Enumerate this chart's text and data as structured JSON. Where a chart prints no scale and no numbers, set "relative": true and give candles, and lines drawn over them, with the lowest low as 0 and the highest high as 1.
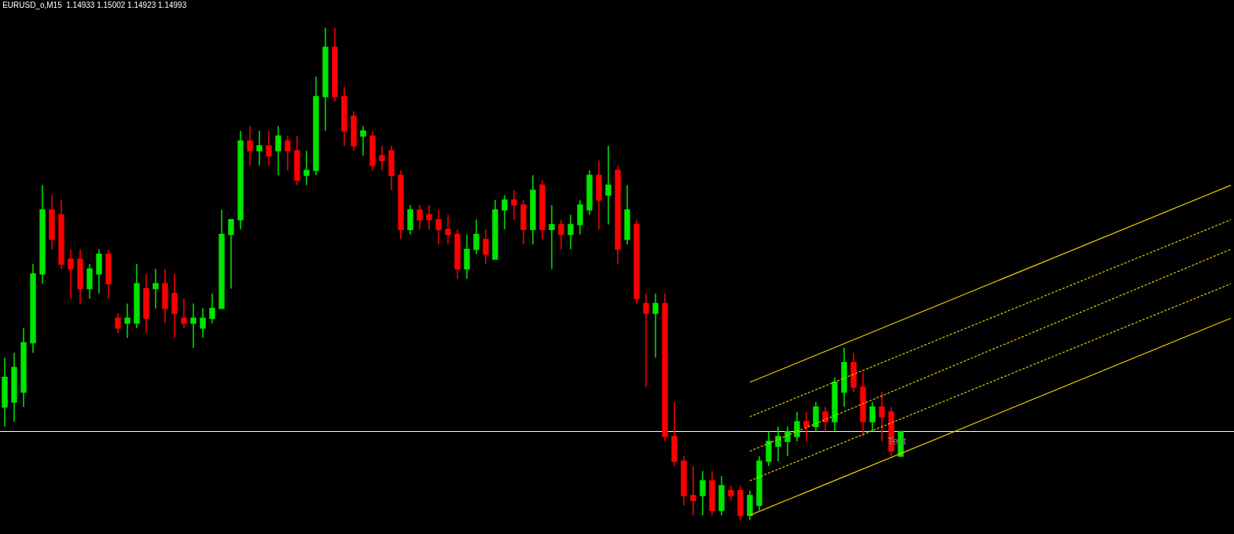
{
  "chart_data": {
    "type": "candlestick",
    "title": "EURUSD_o,M15  1.14933 1.15002 1.14923 1.14993",
    "relative": true,
    "tick_labels": false,
    "grid": false,
    "categories": [
      null,
      null,
      null,
      null,
      null,
      null,
      null,
      null,
      null,
      null,
      null,
      null,
      null,
      null,
      null,
      null,
      null,
      null,
      null,
      null,
      null,
      null,
      null,
      null,
      null,
      null,
      null,
      null,
      null,
      null,
      null,
      null,
      null,
      null,
      null,
      null,
      null,
      null,
      null,
      null,
      null,
      null,
      null,
      null,
      null,
      null,
      null,
      null,
      null,
      null,
      null,
      null,
      null,
      null,
      null,
      null,
      null,
      null,
      null,
      null,
      null,
      null,
      null,
      null,
      null,
      null,
      null,
      null,
      null,
      null,
      null,
      null,
      null,
      null,
      null,
      null,
      null,
      null,
      null,
      null,
      null,
      null,
      null,
      null,
      null,
      null,
      null,
      null,
      null,
      null,
      null,
      null,
      null,
      null,
      null,
      null,
      null,
      null,
      null,
      null,
      null,
      null,
      null,
      null,
      null,
      null,
      null,
      null,
      null,
      null,
      null,
      null,
      null,
      null,
      null,
      null,
      null,
      null,
      null,
      null,
      null,
      null,
      null,
      null,
      null,
      null,
      null,
      null,
      null,
      null,
      null
    ],
    "colors": [
      "#00e600",
      "#00e600",
      "#00e600",
      "#00e600",
      "#00e600",
      "#ff0000",
      "#ff0000",
      "#ff0000",
      "#ff0000",
      "#00e600",
      "#00e600",
      "#ff0000",
      "#ff0000",
      "#00e600",
      "#00e600",
      "#ff0000",
      "#00e600",
      "#ff0000",
      "#ff0000",
      "#ff0000",
      "#00e600",
      "#00e600",
      "#00e600",
      "#00e600",
      "#00e600",
      "#00e600",
      "#ff0000",
      "#00e600",
      "#ff0000",
      "#00e600",
      "#ff0000",
      "#ff0000",
      "#00e600",
      "#00e600",
      "#00e600",
      "#ff0000",
      "#ff0000",
      "#ff0000",
      "#00e600",
      "#ff0000",
      "#ff0000",
      "#ff0000",
      "#ff0000",
      "#00e600",
      "#ff0000",
      "#ff0000",
      "#ff0000",
      "#ff0000",
      "#ff0000",
      "#00e600",
      "#00e600",
      "#ff0000",
      "#00e600",
      "#00e600",
      "#ff0000",
      "#ff0000",
      "#00e600",
      "#ff0000",
      "#00e600",
      "#ff0000",
      "#00e600",
      "#00e600",
      "#00e600",
      "#ff0000",
      "#00e600",
      "#ff0000",
      "#00e600",
      "#ff0000",
      "#ff0000",
      "#00e600",
      "#ff0000",
      "#ff0000",
      "#ff0000",
      "#ff0000",
      "#00e600",
      "#ff0000",
      "#00e600",
      "#ff0000",
      "#ff0000",
      "#00e600",
      "#00e600",
      "#00e600",
      "#00e600",
      "#00e600",
      "#00e600",
      "#ff0000",
      "#00e600",
      "#ff0000",
      "#00e600",
      "#00e600",
      "#ff0000",
      "#ff0000",
      "#00e600",
      "#ff0000",
      "#ff0000",
      "#00e600",
      null,
      null,
      null,
      null,
      null,
      null,
      null,
      null,
      null,
      null,
      null,
      null,
      null,
      null,
      null,
      null,
      null,
      null,
      null,
      null,
      null,
      null,
      null,
      null,
      null,
      null,
      null,
      null,
      null,
      null,
      null,
      null,
      null,
      null,
      null
    ],
    "ohlc": [
      [
        0.23,
        0.33,
        0.19,
        0.29
      ],
      [
        0.24,
        0.34,
        0.2,
        0.31
      ],
      [
        0.26,
        0.39,
        0.23,
        0.36
      ],
      [
        0.36,
        0.52,
        0.34,
        0.5
      ],
      [
        0.5,
        0.68,
        0.48,
        0.63
      ],
      [
        0.63,
        0.66,
        0.55,
        0.57
      ],
      [
        0.62,
        0.65,
        0.51,
        0.52
      ],
      [
        0.53,
        0.55,
        0.45,
        0.51
      ],
      [
        0.53,
        0.55,
        0.44,
        0.47
      ],
      [
        0.47,
        0.52,
        0.45,
        0.51
      ],
      [
        0.5,
        0.55,
        0.46,
        0.54
      ],
      [
        0.54,
        0.55,
        0.45,
        0.48
      ],
      [
        0.41,
        0.42,
        0.38,
        0.39
      ],
      [
        0.4,
        0.44,
        0.37,
        0.41
      ],
      [
        0.4,
        0.52,
        0.39,
        0.48
      ],
      [
        0.47,
        0.5,
        0.38,
        0.41
      ],
      [
        0.47,
        0.51,
        0.43,
        0.48
      ],
      [
        0.48,
        0.51,
        0.4,
        0.43
      ],
      [
        0.46,
        0.5,
        0.37,
        0.42
      ],
      [
        0.41,
        0.45,
        0.39,
        0.4
      ],
      [
        0.4,
        0.44,
        0.35,
        0.41
      ],
      [
        0.39,
        0.43,
        0.37,
        0.41
      ],
      [
        0.41,
        0.46,
        0.4,
        0.43
      ],
      [
        0.43,
        0.63,
        0.43,
        0.58
      ],
      [
        0.58,
        0.61,
        0.47,
        0.61
      ],
      [
        0.61,
        0.79,
        0.59,
        0.77
      ],
      [
        0.77,
        0.8,
        0.72,
        0.75
      ],
      [
        0.75,
        0.79,
        0.72,
        0.76
      ],
      [
        0.76,
        0.79,
        0.72,
        0.74
      ],
      [
        0.75,
        0.8,
        0.7,
        0.78
      ],
      [
        0.77,
        0.78,
        0.71,
        0.75
      ],
      [
        0.75,
        0.78,
        0.68,
        0.69
      ],
      [
        0.7,
        0.75,
        0.68,
        0.71
      ],
      [
        0.71,
        0.9,
        0.7,
        0.86
      ],
      [
        0.86,
        1.0,
        0.79,
        0.96
      ],
      [
        0.96,
        1.0,
        0.85,
        0.86
      ],
      [
        0.86,
        0.88,
        0.76,
        0.79
      ],
      [
        0.82,
        0.83,
        0.75,
        0.76
      ],
      [
        0.78,
        0.8,
        0.74,
        0.79
      ],
      [
        0.78,
        0.79,
        0.71,
        0.72
      ],
      [
        0.74,
        0.76,
        0.71,
        0.73
      ],
      [
        0.75,
        0.76,
        0.67,
        0.7
      ],
      [
        0.7,
        0.71,
        0.57,
        0.59
      ],
      [
        0.59,
        0.64,
        0.58,
        0.63
      ],
      [
        0.63,
        0.64,
        0.59,
        0.61
      ],
      [
        0.62,
        0.64,
        0.59,
        0.61
      ],
      [
        0.61,
        0.63,
        0.56,
        0.59
      ],
      [
        0.59,
        0.62,
        0.56,
        0.58
      ],
      [
        0.58,
        0.59,
        0.49,
        0.51
      ],
      [
        0.51,
        0.58,
        0.49,
        0.55
      ],
      [
        0.55,
        0.61,
        0.54,
        0.58
      ],
      [
        0.57,
        0.59,
        0.52,
        0.54
      ],
      [
        0.53,
        0.65,
        0.53,
        0.63
      ],
      [
        0.63,
        0.66,
        0.59,
        0.65
      ],
      [
        0.65,
        0.67,
        0.61,
        0.64
      ],
      [
        0.64,
        0.65,
        0.56,
        0.59
      ],
      [
        0.59,
        0.7,
        0.56,
        0.67
      ],
      [
        0.68,
        0.69,
        0.57,
        0.59
      ],
      [
        0.59,
        0.64,
        0.51,
        0.6
      ],
      [
        0.6,
        0.61,
        0.55,
        0.58
      ],
      [
        0.58,
        0.62,
        0.55,
        0.6
      ],
      [
        0.6,
        0.65,
        0.58,
        0.64
      ],
      [
        0.63,
        0.71,
        0.62,
        0.7
      ],
      [
        0.7,
        0.73,
        0.59,
        0.65
      ],
      [
        0.66,
        0.76,
        0.6,
        0.68
      ],
      [
        0.71,
        0.72,
        0.52,
        0.55
      ],
      [
        0.57,
        0.68,
        0.56,
        0.63
      ],
      [
        0.6,
        0.61,
        0.44,
        0.45
      ],
      [
        0.44,
        0.46,
        0.27,
        0.42
      ],
      [
        0.42,
        0.46,
        0.33,
        0.44
      ],
      [
        0.44,
        0.46,
        0.16,
        0.17
      ],
      [
        0.17,
        0.24,
        0.11,
        0.12
      ],
      [
        0.12,
        0.13,
        0.03,
        0.05
      ],
      [
        0.05,
        0.11,
        0.01,
        0.04
      ],
      [
        0.05,
        0.1,
        0.01,
        0.08
      ],
      [
        0.08,
        0.1,
        0.01,
        0.02
      ],
      [
        0.02,
        0.09,
        0.01,
        0.07
      ],
      [
        0.06,
        0.07,
        0.04,
        0.05
      ],
      [
        0.06,
        0.07,
        0.0,
        0.01
      ],
      [
        0.01,
        0.06,
        0.0,
        0.05
      ],
      [
        0.03,
        0.13,
        0.02,
        0.12
      ],
      [
        0.12,
        0.18,
        0.11,
        0.16
      ],
      [
        0.15,
        0.19,
        0.12,
        0.17
      ],
      [
        0.16,
        0.19,
        0.13,
        0.18
      ],
      [
        0.17,
        0.22,
        0.16,
        0.2
      ],
      [
        0.2,
        0.22,
        0.16,
        0.19
      ],
      [
        0.19,
        0.24,
        0.18,
        0.23
      ],
      [
        0.22,
        0.23,
        0.18,
        0.2
      ],
      [
        0.2,
        0.29,
        0.18,
        0.28
      ],
      [
        0.26,
        0.35,
        0.23,
        0.32
      ],
      [
        0.32,
        0.34,
        0.26,
        0.27
      ],
      [
        0.27,
        0.3,
        0.17,
        0.2
      ],
      [
        0.2,
        0.24,
        0.18,
        0.23
      ],
      [
        0.23,
        0.26,
        0.16,
        0.21
      ],
      [
        0.22,
        0.23,
        0.13,
        0.14
      ],
      [
        0.13,
        0.18,
        0.13,
        0.18
      ],
      null,
      null,
      null,
      null,
      null,
      null,
      null,
      null,
      null,
      null,
      null,
      null,
      null,
      null,
      null,
      null,
      null,
      null,
      null,
      null,
      null,
      null,
      null,
      null,
      null,
      null,
      null,
      null,
      null,
      null,
      null,
      null,
      null,
      null,
      null
    ],
    "series": [
      {
        "type": "line",
        "color": "#e6c800",
        "line_style": "solid",
        "values": [
          null,
          null,
          null,
          null,
          null,
          null,
          null,
          null,
          null,
          null,
          null,
          null,
          null,
          null,
          null,
          null,
          null,
          null,
          null,
          null,
          null,
          null,
          null,
          null,
          null,
          null,
          null,
          null,
          null,
          null,
          null,
          null,
          null,
          null,
          null,
          null,
          null,
          null,
          null,
          null,
          null,
          null,
          null,
          null,
          null,
          null,
          null,
          null,
          null,
          null,
          null,
          null,
          null,
          null,
          null,
          null,
          null,
          null,
          null,
          null,
          null,
          null,
          null,
          null,
          null,
          null,
          null,
          null,
          null,
          null,
          null,
          null,
          null,
          null,
          null,
          null,
          null,
          null,
          null,
          0.28,
          null,
          null,
          null,
          null,
          null,
          null,
          null,
          null,
          null,
          null,
          null,
          null,
          null,
          null,
          null,
          null,
          null,
          null,
          null,
          null,
          null,
          null,
          null,
          null,
          null,
          null,
          null,
          null,
          null,
          null,
          null,
          null,
          null,
          null,
          null,
          null,
          null,
          null,
          null,
          null,
          null,
          null,
          null,
          null,
          null,
          null,
          null,
          null,
          null,
          null,
          0.68
        ]
      },
      {
        "type": "line",
        "color": "#e6c800",
        "line_style": "dashed",
        "values": [
          null,
          null,
          null,
          null,
          null,
          null,
          null,
          null,
          null,
          null,
          null,
          null,
          null,
          null,
          null,
          null,
          null,
          null,
          null,
          null,
          null,
          null,
          null,
          null,
          null,
          null,
          null,
          null,
          null,
          null,
          null,
          null,
          null,
          null,
          null,
          null,
          null,
          null,
          null,
          null,
          null,
          null,
          null,
          null,
          null,
          null,
          null,
          null,
          null,
          null,
          null,
          null,
          null,
          null,
          null,
          null,
          null,
          null,
          null,
          null,
          null,
          null,
          null,
          null,
          null,
          null,
          null,
          null,
          null,
          null,
          null,
          null,
          null,
          null,
          null,
          null,
          null,
          null,
          null,
          0.21,
          null,
          null,
          null,
          null,
          null,
          null,
          null,
          null,
          null,
          null,
          null,
          null,
          null,
          null,
          null,
          null,
          null,
          null,
          null,
          null,
          null,
          null,
          null,
          null,
          null,
          null,
          null,
          null,
          null,
          null,
          null,
          null,
          null,
          null,
          null,
          null,
          null,
          null,
          null,
          null,
          null,
          null,
          null,
          null,
          null,
          null,
          null,
          null,
          null,
          null,
          0.61
        ]
      },
      {
        "type": "line",
        "color": "#e6c800",
        "line_style": "dashed",
        "values": [
          null,
          null,
          null,
          null,
          null,
          null,
          null,
          null,
          null,
          null,
          null,
          null,
          null,
          null,
          null,
          null,
          null,
          null,
          null,
          null,
          null,
          null,
          null,
          null,
          null,
          null,
          null,
          null,
          null,
          null,
          null,
          null,
          null,
          null,
          null,
          null,
          null,
          null,
          null,
          null,
          null,
          null,
          null,
          null,
          null,
          null,
          null,
          null,
          null,
          null,
          null,
          null,
          null,
          null,
          null,
          null,
          null,
          null,
          null,
          null,
          null,
          null,
          null,
          null,
          null,
          null,
          null,
          null,
          null,
          null,
          null,
          null,
          null,
          null,
          null,
          null,
          null,
          null,
          null,
          0.14,
          null,
          null,
          null,
          null,
          null,
          null,
          null,
          null,
          null,
          null,
          null,
          null,
          null,
          null,
          null,
          null,
          null,
          null,
          null,
          null,
          null,
          null,
          null,
          null,
          null,
          null,
          null,
          null,
          null,
          null,
          null,
          null,
          null,
          null,
          null,
          null,
          null,
          null,
          null,
          null,
          null,
          null,
          null,
          null,
          null,
          null,
          null,
          null,
          null,
          null,
          0.55
        ]
      },
      {
        "type": "line",
        "color": "#e6c800",
        "line_style": "dashed",
        "values": [
          null,
          null,
          null,
          null,
          null,
          null,
          null,
          null,
          null,
          null,
          null,
          null,
          null,
          null,
          null,
          null,
          null,
          null,
          null,
          null,
          null,
          null,
          null,
          null,
          null,
          null,
          null,
          null,
          null,
          null,
          null,
          null,
          null,
          null,
          null,
          null,
          null,
          null,
          null,
          null,
          null,
          null,
          null,
          null,
          null,
          null,
          null,
          null,
          null,
          null,
          null,
          null,
          null,
          null,
          null,
          null,
          null,
          null,
          null,
          null,
          null,
          null,
          null,
          null,
          null,
          null,
          null,
          null,
          null,
          null,
          null,
          null,
          null,
          null,
          null,
          null,
          null,
          null,
          null,
          0.08,
          null,
          null,
          null,
          null,
          null,
          null,
          null,
          null,
          null,
          null,
          null,
          null,
          null,
          null,
          null,
          null,
          null,
          null,
          null,
          null,
          null,
          null,
          null,
          null,
          null,
          null,
          null,
          null,
          null,
          null,
          null,
          null,
          null,
          null,
          null,
          null,
          null,
          null,
          null,
          null,
          null,
          null,
          null,
          null,
          null,
          null,
          null,
          null,
          null,
          null,
          0.48
        ]
      },
      {
        "type": "line",
        "color": "#e6c800",
        "line_style": "solid",
        "values": [
          null,
          null,
          null,
          null,
          null,
          null,
          null,
          null,
          null,
          null,
          null,
          null,
          null,
          null,
          null,
          null,
          null,
          null,
          null,
          null,
          null,
          null,
          null,
          null,
          null,
          null,
          null,
          null,
          null,
          null,
          null,
          null,
          null,
          null,
          null,
          null,
          null,
          null,
          null,
          null,
          null,
          null,
          null,
          null,
          null,
          null,
          null,
          null,
          null,
          null,
          null,
          null,
          null,
          null,
          null,
          null,
          null,
          null,
          null,
          null,
          null,
          null,
          null,
          null,
          null,
          null,
          null,
          null,
          null,
          null,
          null,
          null,
          null,
          null,
          null,
          null,
          null,
          null,
          null,
          0.01,
          null,
          null,
          null,
          null,
          null,
          null,
          null,
          null,
          null,
          null,
          null,
          null,
          null,
          null,
          null,
          null,
          null,
          null,
          null,
          null,
          null,
          null,
          null,
          null,
          null,
          null,
          null,
          null,
          null,
          null,
          null,
          null,
          null,
          null,
          null,
          null,
          null,
          null,
          null,
          null,
          null,
          null,
          null,
          null,
          null,
          null,
          null,
          null,
          null,
          null,
          0.41
        ]
      }
    ],
    "ref_lines": [
      {
        "axis": "y",
        "value": 0.18,
        "color": "#ffffff",
        "line_style": "solid",
        "label": "Text"
      }
    ]
  }
}
